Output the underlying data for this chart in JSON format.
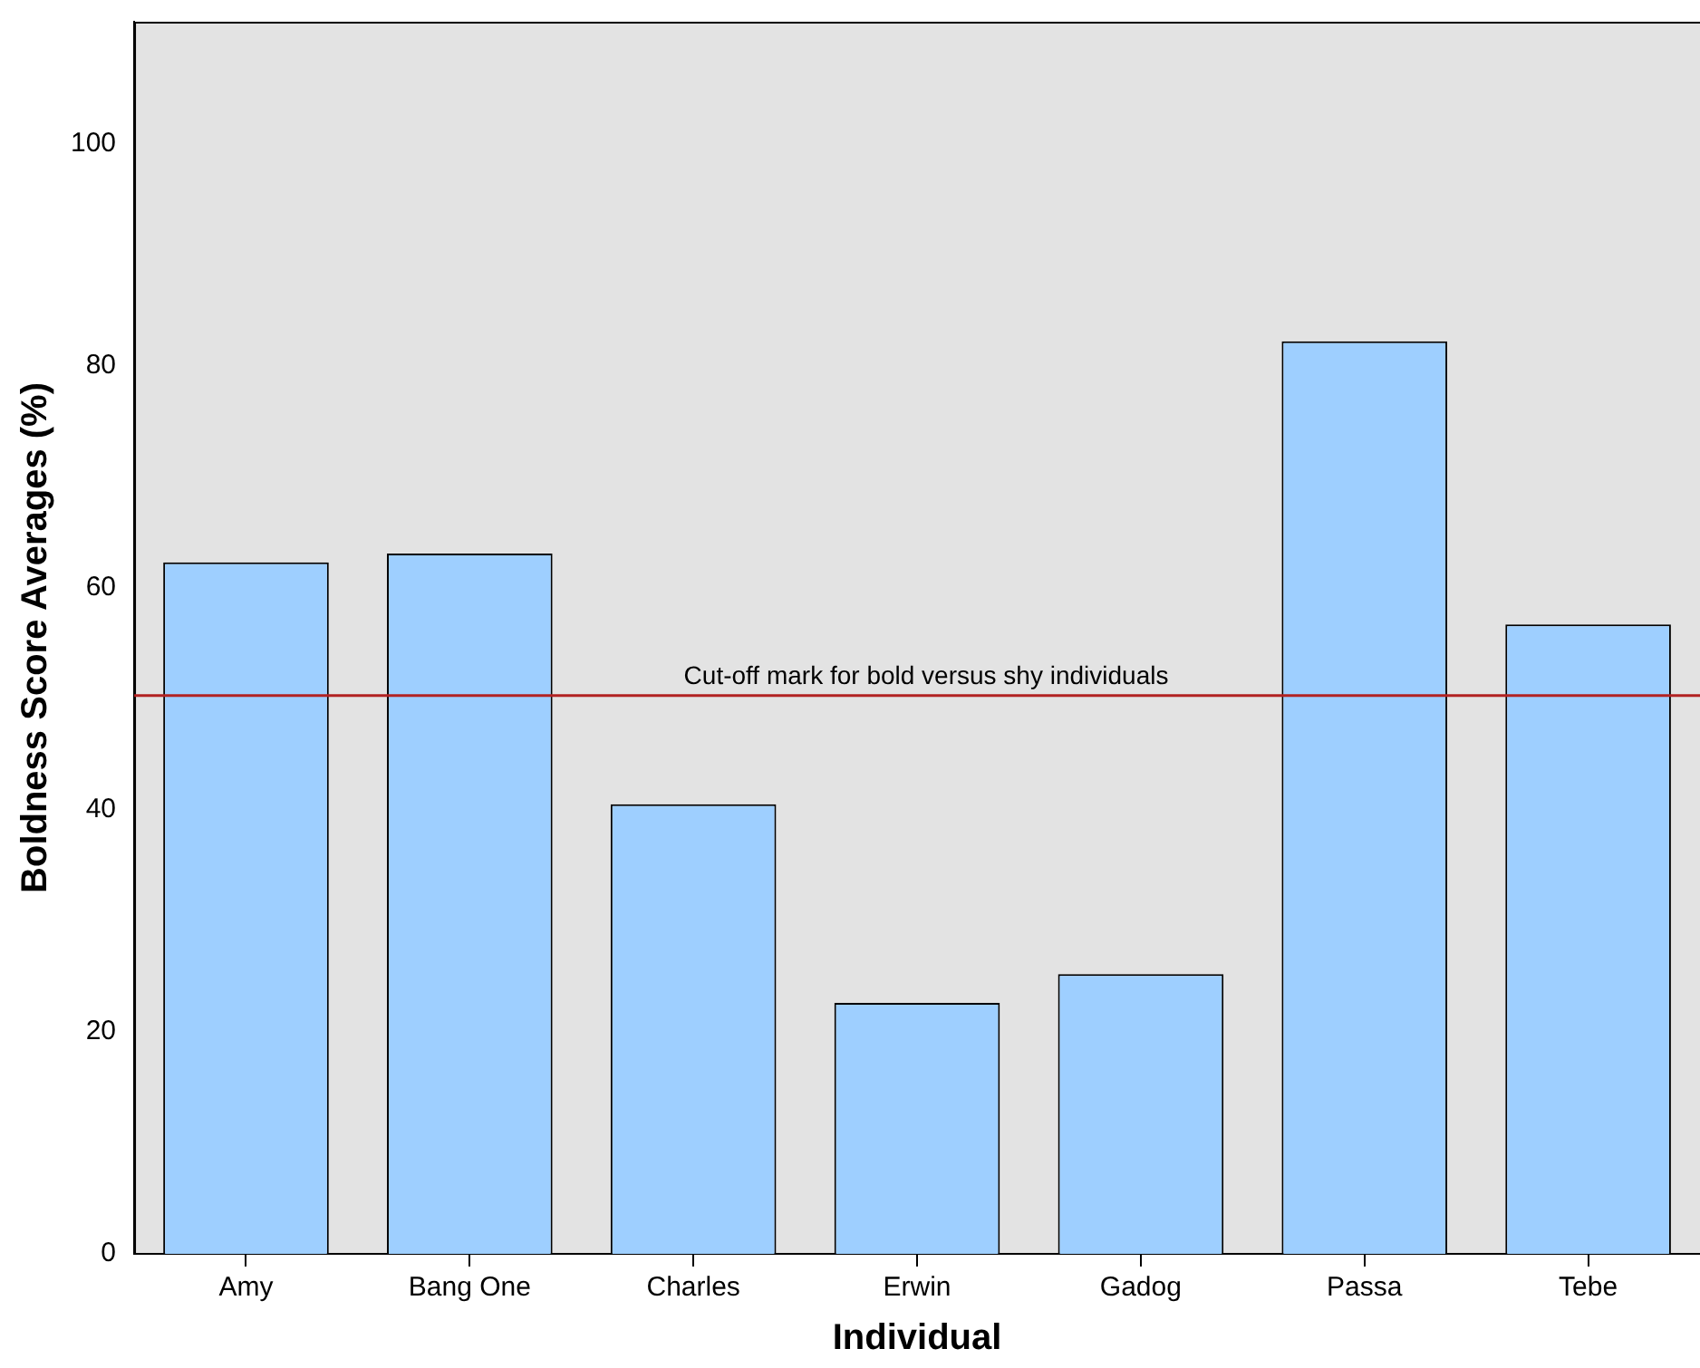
{
  "chart_data": {
    "type": "bar",
    "xlabel": "Individual",
    "ylabel": "Boldness Score Averages (%)",
    "categories": [
      "Amy",
      "Bang One",
      "Charles",
      "Erwin",
      "Gadog",
      "Passa",
      "Tebe"
    ],
    "values": [
      62.3,
      63.1,
      40.5,
      22.6,
      25.2,
      82.2,
      56.7
    ],
    "color": "#9ecfff",
    "ylim": [
      0,
      111
    ],
    "yticks": [
      0,
      20,
      40,
      60,
      80,
      100
    ],
    "grid": false,
    "legend": false,
    "ref_lines": [
      {
        "axis": "y",
        "value": 50.3,
        "label": "Cut-off mark for bold versus shy individuals",
        "color": "#b22222"
      }
    ]
  }
}
